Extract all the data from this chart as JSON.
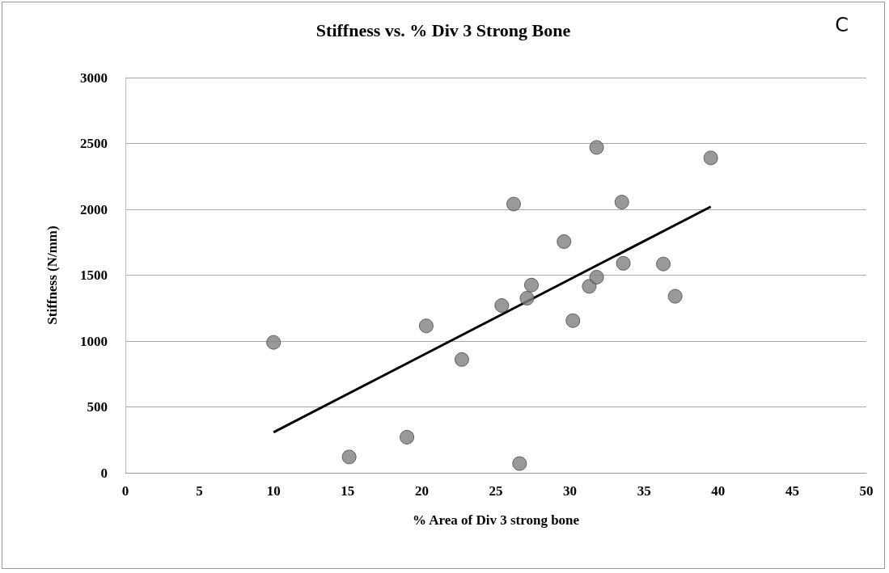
{
  "chart_data": {
    "type": "scatter",
    "title": "Stiffness vs. % Div 3 Strong Bone",
    "xlabel": "% Area of Div 3 strong bone",
    "ylabel": "Stiffness (N/mm)",
    "annotations": [
      "C"
    ],
    "series": [
      {
        "color": "#7f7f7f",
        "marker": "circle",
        "x": [
          10.0,
          15.1,
          19.0,
          20.3,
          22.7,
          25.4,
          26.2,
          26.6,
          27.1,
          27.4,
          29.6,
          30.2,
          31.3,
          31.8,
          31.8,
          33.5,
          33.6,
          36.3,
          37.1,
          39.5
        ],
        "values": [
          990,
          120,
          270,
          1115,
          860,
          1270,
          2040,
          70,
          1325,
          1425,
          1755,
          1155,
          1415,
          2470,
          1485,
          2055,
          1590,
          1585,
          1340,
          2390
        ]
      },
      {
        "type": "line",
        "color": "#000000",
        "marker": "none",
        "line_style": "solid",
        "x": [
          10.0,
          39.5
        ],
        "values": [
          308,
          2020
        ]
      }
    ],
    "xlim": [
      0,
      50
    ],
    "xticks": [
      0,
      5,
      10,
      15,
      20,
      25,
      30,
      35,
      40,
      45,
      50
    ],
    "ylim": [
      0,
      3000
    ],
    "yticks": [
      0,
      500,
      1000,
      1500,
      2000,
      2500,
      3000
    ],
    "grid": "y"
  }
}
